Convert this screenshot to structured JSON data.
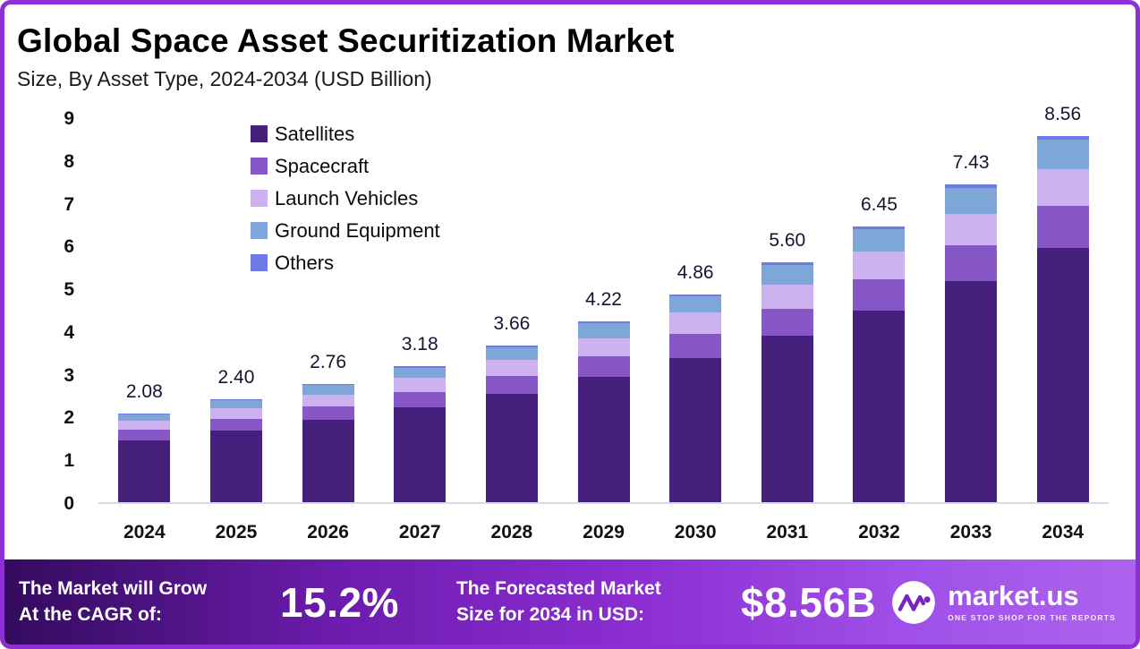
{
  "header": {
    "title": "Global Space Asset Securitization Market",
    "subtitle": "Size, By Asset Type, 2024-2034 (USD Billion)"
  },
  "chart_data": {
    "type": "bar",
    "stacked": true,
    "title": "Global Space Asset Securitization Market",
    "subtitle": "Size, By Asset Type, 2024-2034 (USD Billion)",
    "xlabel": "",
    "ylabel": "USD Billion",
    "ylim": [
      0,
      9
    ],
    "yticks": [
      0,
      1,
      2,
      3,
      4,
      5,
      6,
      7,
      8,
      9
    ],
    "grid": false,
    "legend_position": "top-left",
    "categories": [
      "2024",
      "2025",
      "2026",
      "2027",
      "2028",
      "2029",
      "2030",
      "2031",
      "2032",
      "2033",
      "2034"
    ],
    "totals": [
      2.08,
      2.4,
      2.76,
      3.18,
      3.66,
      4.22,
      4.86,
      5.6,
      6.45,
      7.43,
      8.56
    ],
    "series": [
      {
        "name": "Satellites",
        "color": "#45217d",
        "values": [
          1.45,
          1.67,
          1.92,
          2.21,
          2.54,
          2.93,
          3.38,
          3.89,
          4.48,
          5.16,
          5.95
        ]
      },
      {
        "name": "Spacecraft",
        "color": "#8757c8",
        "values": [
          0.24,
          0.28,
          0.32,
          0.37,
          0.42,
          0.49,
          0.56,
          0.64,
          0.74,
          0.85,
          0.98
        ]
      },
      {
        "name": "Launch Vehicles",
        "color": "#ccb2ee",
        "values": [
          0.21,
          0.24,
          0.28,
          0.32,
          0.37,
          0.42,
          0.49,
          0.56,
          0.65,
          0.74,
          0.86
        ]
      },
      {
        "name": "Ground Equipment",
        "color": "#7fa6d9",
        "values": [
          0.16,
          0.19,
          0.22,
          0.25,
          0.29,
          0.34,
          0.39,
          0.45,
          0.52,
          0.6,
          0.68
        ]
      },
      {
        "name": "Others",
        "color": "#6d7ae8",
        "values": [
          0.02,
          0.02,
          0.02,
          0.03,
          0.04,
          0.04,
          0.04,
          0.06,
          0.06,
          0.08,
          0.09
        ]
      }
    ]
  },
  "footer": {
    "cagr_label": "The Market will Grow\nAt the CAGR of:",
    "cagr_value": "15.2%",
    "forecast_label": "The Forecasted Market\nSize for 2034 in USD:",
    "forecast_value": "$8.56B",
    "brand": "market.us",
    "brand_tagline": "ONE STOP SHOP FOR THE REPORTS"
  },
  "colors": {
    "border": "#8d2fd4",
    "footer_gradient_start": "#330b5e",
    "footer_gradient_mid": "#8b2dd1",
    "footer_gradient_end": "#ad63ee",
    "axis_text": "#111111",
    "bar_total_text": "#141432"
  }
}
